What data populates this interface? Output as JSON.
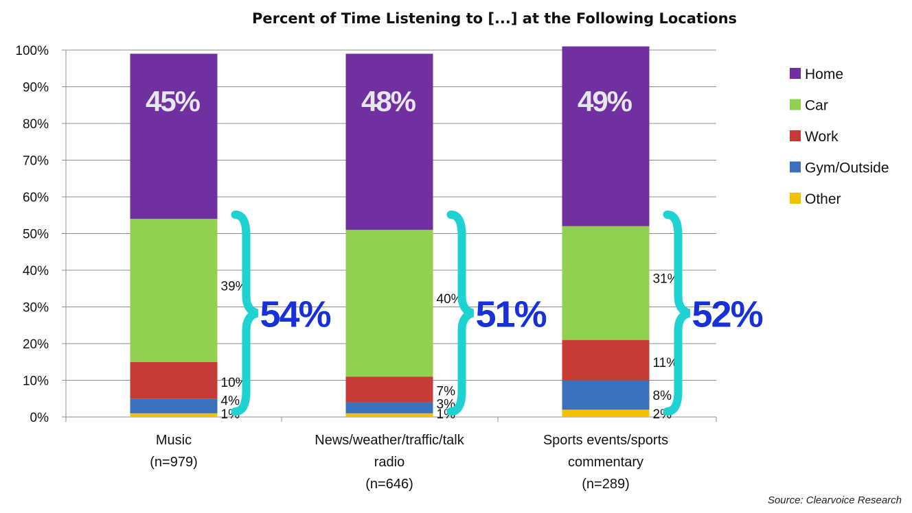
{
  "chart_data": {
    "type": "bar",
    "stacked": true,
    "title": "Percent of Time Listening to [...] at the Following Locations",
    "source": "Source: Clearvoice Research",
    "categories": [
      [
        "Music",
        "(n=979)"
      ],
      [
        "News/weather/traffic/talk",
        "radio",
        "(n=646)"
      ],
      [
        "Sports events/sports",
        "commentary",
        "(n=289)"
      ]
    ],
    "series": [
      {
        "name": "Other",
        "color": "#f5c000",
        "values": [
          1,
          1,
          2
        ],
        "labels": [
          "1%",
          "1%",
          "2%"
        ]
      },
      {
        "name": "Gym/Outside",
        "color": "#3a70bc",
        "values": [
          4,
          3,
          8
        ],
        "labels": [
          "4%",
          "3%",
          "8%"
        ]
      },
      {
        "name": "Work",
        "color": "#c73b36",
        "values": [
          10,
          7,
          11
        ],
        "labels": [
          "10%",
          "7%",
          "11%"
        ]
      },
      {
        "name": "Car",
        "color": "#92d050",
        "values": [
          39,
          40,
          31
        ],
        "labels": [
          "39%",
          "40%",
          "31%"
        ]
      },
      {
        "name": "Home",
        "color": "#7030a0",
        "values": [
          45,
          48,
          49
        ],
        "labels": [
          "45%",
          "48%",
          "49%"
        ]
      }
    ],
    "legend_order": [
      "Home",
      "Car",
      "Work",
      "Gym/Outside",
      "Other"
    ],
    "away_from_home": {
      "labels": [
        "54%",
        "51%",
        "52%"
      ],
      "bracket_color": "#1ed2d2"
    },
    "ylim": [
      0,
      100
    ],
    "yticks": [
      "0%",
      "10%",
      "20%",
      "30%",
      "40%",
      "50%",
      "60%",
      "70%",
      "80%",
      "90%",
      "100%"
    ],
    "grid": true,
    "legend_position": "right"
  }
}
